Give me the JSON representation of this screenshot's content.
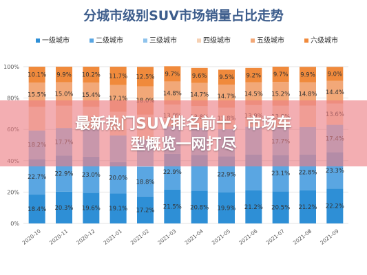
{
  "overlay": {
    "line1": "最新热门SUV排名前十，市场车",
    "line2": "型概览一网打尽"
  },
  "chart_data": {
    "type": "bar",
    "stacked": true,
    "title": "分城市级别SUV市场销量占比走势",
    "categories": [
      "2020-10",
      "2020-11",
      "2020-12",
      "2021-01",
      "2021-02",
      "2021-03",
      "2021-04",
      "2021-05",
      "2021-06",
      "2021-07",
      "2021-08",
      "2021-09"
    ],
    "y_ticks": [
      "0%",
      "20%",
      "40%",
      "60%",
      "80%",
      "100%"
    ],
    "ylim": [
      0,
      100
    ],
    "legend_position": "top",
    "grid": true,
    "series": [
      {
        "name": "一级城市",
        "color": "#2e8fd6",
        "values": [
          18.4,
          20.3,
          19.6,
          19.1,
          17.2,
          21.5,
          20.8,
          19.9,
          21.2,
          20.5,
          21.2,
          22.2
        ],
        "labels": [
          "18.4%",
          "20.3%",
          "19.6%",
          "19.1%",
          "17.2%",
          "21.5%",
          "20.8%",
          "19.9%",
          "21.2%",
          "20.5%",
          "21.2%",
          "22.2%"
        ]
      },
      {
        "name": "二级城市",
        "color": "#5aa6e2",
        "values": [
          22.7,
          22.9,
          23.0,
          20.0,
          18.8,
          22.9,
          22.9,
          22.9,
          22.8,
          23.1,
          22.8,
          23.3
        ],
        "labels": [
          "22.7%",
          "22.9%",
          "23.0%",
          "20.0%",
          "18.8%",
          "22.9%",
          "",
          "22.9%",
          "",
          "23.1%",
          "22.8%",
          "23.3%"
        ]
      },
      {
        "name": "三级城市",
        "color": "#8fc3ec",
        "values": [
          18.2,
          17.7,
          17.6,
          17.0,
          17.4,
          17.5,
          17.4,
          17.3,
          17.6,
          17.7,
          17.5,
          17.4
        ],
        "labels": [
          "18.2%",
          "17.7%",
          "",
          "",
          "",
          "",
          "",
          "",
          "",
          "17.7%",
          "",
          "17.4%"
        ]
      },
      {
        "name": "四级城市",
        "color": "#f6d1b4",
        "values": [
          15.1,
          14.2,
          14.2,
          15.1,
          16.0,
          13.9,
          13.8,
          13.8,
          13.9,
          13.8,
          13.7,
          13.6
        ],
        "labels": [
          "",
          "",
          "",
          "",
          "",
          "13.9%",
          "13.8%",
          "13.8%",
          "13.9%",
          "13.8%",
          "",
          "13.6%"
        ]
      },
      {
        "name": "五级城市",
        "color": "#f2a878",
        "values": [
          15.5,
          15.0,
          15.4,
          17.1,
          18.0,
          14.8,
          14.7,
          14.7,
          14.5,
          15.2,
          14.8,
          14.4
        ],
        "labels": [
          "15.5%",
          "15.0%",
          "15.4%",
          "17.1%",
          "18.0%",
          "14.8%",
          "14.7%",
          "14.7%",
          "14.5%",
          "15.2%",
          "14.8%",
          "14.4%"
        ]
      },
      {
        "name": "六级城市",
        "color": "#f08a3c",
        "values": [
          10.1,
          9.9,
          10.2,
          11.7,
          12.5,
          9.7,
          9.6,
          9.5,
          9.2,
          9.7,
          9.9,
          9.0
        ],
        "labels": [
          "10.1%",
          "9.9%",
          "10.2%",
          "11.7%",
          "12.5%",
          "9.7%",
          "9.6%",
          "9.5%",
          "9.2%",
          "9.7%",
          "9.9%",
          "9.0%"
        ]
      }
    ]
  }
}
